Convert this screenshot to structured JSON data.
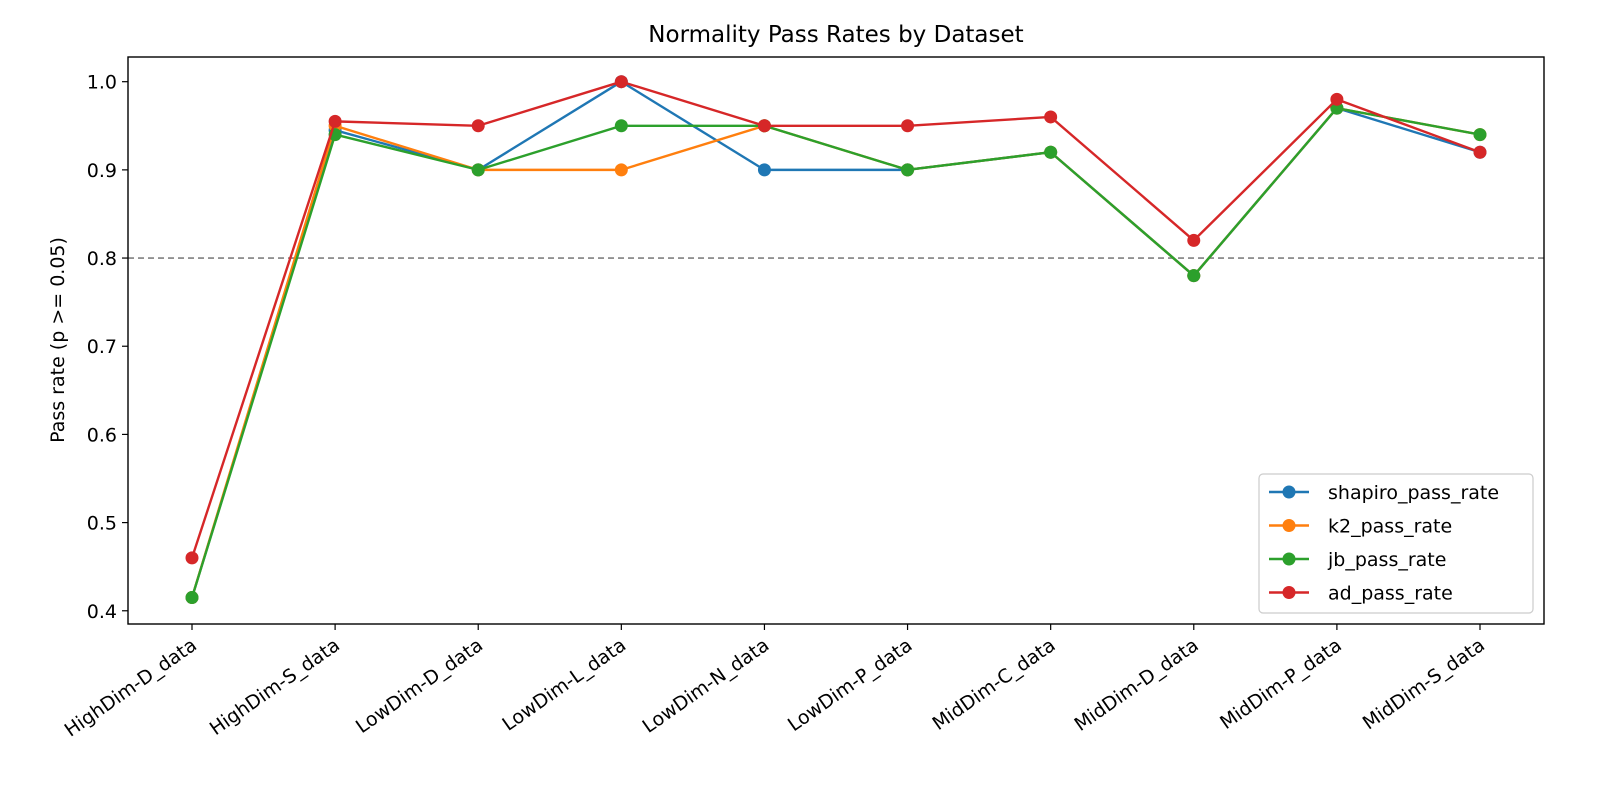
{
  "chart_data": {
    "type": "line",
    "title": "Normality Pass Rates by Dataset",
    "xlabel": "",
    "ylabel": "Pass rate (p >= 0.05)",
    "categories": [
      "HighDim-D_data",
      "HighDim-S_data",
      "LowDim-D_data",
      "LowDim-L_data",
      "LowDim-N_data",
      "LowDim-P_data",
      "MidDim-C_data",
      "MidDim-D_data",
      "MidDim-P_data",
      "MidDim-S_data"
    ],
    "ylim": [
      0.385,
      1.028
    ],
    "yticks": [
      0.4,
      0.5,
      0.6,
      0.7,
      0.8,
      0.9,
      1.0
    ],
    "ytick_labels": [
      "0.4",
      "0.5",
      "0.6",
      "0.7",
      "0.8",
      "0.9",
      "1.0"
    ],
    "reference_line": {
      "y": 0.8,
      "style": "dashed",
      "color": "#808080"
    },
    "grid": false,
    "legend_position": "lower-right",
    "series": [
      {
        "name": "shapiro_pass_rate",
        "color": "#1f77b4",
        "values": [
          0.415,
          0.945,
          0.9,
          1.0,
          0.9,
          0.9,
          0.92,
          0.78,
          0.97,
          0.92
        ]
      },
      {
        "name": "k2_pass_rate",
        "color": "#ff7f0e",
        "values": [
          0.415,
          0.95,
          0.9,
          0.9,
          0.95,
          0.9,
          0.92,
          0.78,
          0.97,
          0.94
        ]
      },
      {
        "name": "jb_pass_rate",
        "color": "#2ca02c",
        "values": [
          0.415,
          0.94,
          0.9,
          0.95,
          0.95,
          0.9,
          0.92,
          0.78,
          0.97,
          0.94
        ]
      },
      {
        "name": "ad_pass_rate",
        "color": "#d62728",
        "values": [
          0.46,
          0.955,
          0.95,
          1.0,
          0.95,
          0.95,
          0.96,
          0.82,
          0.98,
          0.92
        ]
      }
    ]
  }
}
